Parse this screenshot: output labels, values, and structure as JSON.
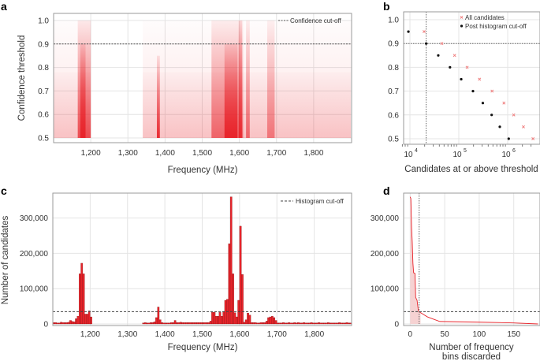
{
  "colors": {
    "red": "#e8242b",
    "pink": "#f08080",
    "black": "#111111",
    "grid": "#e4e4e4",
    "frame": "#9a9a9a",
    "fill": "#f6d2d2"
  },
  "chart_data": [
    {
      "panel": "a",
      "type": "scatter",
      "xlabel": "Frequency (MHz)",
      "ylabel": "Confidence threshold",
      "xlim": [
        1100,
        1900
      ],
      "ylim": [
        0.5,
        1.0
      ],
      "xticks": [
        "1,200",
        "1,300",
        "1,400",
        "1,500",
        "1,600",
        "1,700",
        "1,800"
      ],
      "xtick_values": [
        1200,
        1300,
        1400,
        1500,
        1600,
        1700,
        1800
      ],
      "yticks": [
        "0.5",
        "0.6",
        "0.7",
        "0.8",
        "0.9",
        "1.0"
      ],
      "ytick_values": [
        0.5,
        0.6,
        0.7,
        0.8,
        0.9,
        1.0
      ],
      "cutoff": 0.9,
      "legend": "Confidence cut-off",
      "density_bands": [
        {
          "from": 1100,
          "to": 1200,
          "max_threshold": 1.0,
          "intensity": 0.12
        },
        {
          "from": 1340,
          "to": 1900,
          "max_threshold": 1.0,
          "intensity": 0.12
        },
        {
          "from": 1100,
          "to": 1200,
          "max_threshold": 0.78,
          "intensity": 0.18
        },
        {
          "from": 1340,
          "to": 1900,
          "max_threshold": 0.78,
          "intensity": 0.18
        },
        {
          "from": 1165,
          "to": 1200,
          "max_threshold": 1.0,
          "intensity": 0.75
        },
        {
          "from": 1172,
          "to": 1186,
          "max_threshold": 0.9,
          "intensity": 1.0
        },
        {
          "from": 1378,
          "to": 1386,
          "max_threshold": 0.85,
          "intensity": 0.95
        },
        {
          "from": 1525,
          "to": 1610,
          "max_threshold": 1.0,
          "intensity": 0.6
        },
        {
          "from": 1560,
          "to": 1595,
          "max_threshold": 0.9,
          "intensity": 1.0
        },
        {
          "from": 1598,
          "to": 1607,
          "max_threshold": 1.0,
          "intensity": 0.9
        },
        {
          "from": 1618,
          "to": 1628,
          "max_threshold": 1.0,
          "intensity": 0.6
        },
        {
          "from": 1675,
          "to": 1695,
          "max_threshold": 1.0,
          "intensity": 0.5
        }
      ]
    },
    {
      "panel": "b",
      "type": "scatter",
      "xlabel": "Candidates at or above threshold",
      "xscale": "log",
      "xlim": [
        7000,
        3500000
      ],
      "ylim": [
        0.5,
        1.0
      ],
      "xticks": [
        {
          "base": "10",
          "exp": "4",
          "value": 10000
        },
        {
          "base": "10",
          "exp": "5",
          "value": 100000
        },
        {
          "base": "10",
          "exp": "6",
          "value": 1000000
        }
      ],
      "yticks": [
        "0.5",
        "0.6",
        "0.7",
        "0.8",
        "0.9",
        "1.0"
      ],
      "ytick_values": [
        0.5,
        0.6,
        0.7,
        0.8,
        0.9,
        1.0
      ],
      "cutoff_threshold": 0.9,
      "cutoff_candidates": 21500,
      "series": [
        {
          "name": "All candidates",
          "marker": "x",
          "color": "#f08080",
          "x": [
            19500,
            45000,
            82000,
            148000,
            265000,
            480000,
            840000,
            1330000,
            2100000,
            3300000
          ],
          "y": [
            0.95,
            0.9,
            0.85,
            0.8,
            0.75,
            0.7,
            0.65,
            0.6,
            0.55,
            0.5
          ]
        },
        {
          "name": "Post histogram cut-off",
          "marker": "dot",
          "color": "#111111",
          "x": [
            9300,
            21500,
            38000,
            66000,
            112000,
            195000,
            310000,
            470000,
            690000,
            1050000
          ],
          "y": [
            0.95,
            0.9,
            0.85,
            0.8,
            0.75,
            0.7,
            0.65,
            0.6,
            0.55,
            0.5
          ]
        }
      ]
    },
    {
      "panel": "c",
      "type": "bar",
      "xlabel": "Frequency (MHz)",
      "ylabel": "Number of candidates",
      "xlim": [
        1100,
        1900
      ],
      "ylim": [
        0,
        370000
      ],
      "xticks": [
        "1,200",
        "1,300",
        "1,400",
        "1,500",
        "1,600",
        "1,700",
        "1,800"
      ],
      "xtick_values": [
        1200,
        1300,
        1400,
        1500,
        1600,
        1700,
        1800
      ],
      "yticks": [
        "0",
        "100,000",
        "200,000",
        "300,000"
      ],
      "ytick_values": [
        0,
        100000,
        200000,
        300000
      ],
      "cutoff": 35000,
      "legend": "Histogram cut-off",
      "bin_start": 1100,
      "bin_width": 5,
      "values": [
        4000,
        4000,
        3000,
        3000,
        5000,
        4000,
        4000,
        4000,
        5000,
        10000,
        7000,
        6000,
        15000,
        22000,
        142000,
        172000,
        142000,
        28000,
        28000,
        37000,
        20000,
        0,
        0,
        0,
        0,
        0,
        0,
        0,
        0,
        0,
        0,
        0,
        0,
        0,
        0,
        0,
        0,
        0,
        0,
        0,
        0,
        0,
        0,
        0,
        0,
        0,
        0,
        0,
        3000,
        4000,
        3000,
        3000,
        4000,
        4000,
        6000,
        18000,
        48000,
        12000,
        4000,
        3000,
        3000,
        3000,
        3000,
        4000,
        4000,
        10000,
        4000,
        4000,
        5000,
        4000,
        4000,
        4000,
        4000,
        4000,
        4000,
        4000,
        4000,
        4000,
        4000,
        4000,
        4000,
        4000,
        4000,
        4000,
        8000,
        33000,
        33000,
        22000,
        22000,
        33000,
        22000,
        35000,
        67000,
        70000,
        227000,
        360000,
        142000,
        32000,
        20000,
        67000,
        277000,
        140000,
        5000,
        12000,
        31000,
        25000,
        4000,
        4000,
        4000,
        3000,
        3000,
        4000,
        4000,
        4000,
        8000,
        18000,
        20000,
        22000,
        18000,
        10000,
        3000,
        3000,
        3000,
        4000,
        3000,
        3000,
        4000,
        3000,
        3000,
        4000,
        3000,
        4000,
        3000,
        3000,
        4000,
        3000,
        3000,
        3000,
        4000,
        3000,
        3000,
        3000,
        4000,
        3000,
        3000,
        3000,
        3000,
        4000,
        3000,
        3000,
        3000,
        3000,
        3000,
        4000,
        3000,
        3000,
        3000,
        4000,
        3000,
        3000
      ]
    },
    {
      "panel": "d",
      "type": "area",
      "xlabel": [
        "Number of frequency",
        "bins discarded"
      ],
      "xlim": [
        -8,
        188
      ],
      "ylim": [
        0,
        370000
      ],
      "xticks": [
        "0",
        "50",
        "100",
        "150"
      ],
      "xtick_values": [
        0,
        50,
        100,
        150
      ],
      "yticks": [
        "0",
        "100,000",
        "200,000",
        "300,000"
      ],
      "ytick_values": [
        0,
        100000,
        200000,
        300000
      ],
      "cutoff_bins": 13,
      "cutoff_count": 35000,
      "x": [
        0,
        1,
        2,
        3,
        4,
        5,
        7,
        8,
        10,
        12,
        15,
        25,
        43,
        100,
        150,
        185
      ],
      "y": [
        360000,
        355000,
        275000,
        232000,
        172000,
        145000,
        143000,
        75000,
        67000,
        36000,
        32000,
        20000,
        7000,
        5000,
        3000,
        0
      ]
    }
  ],
  "panel_labels": [
    "a",
    "b",
    "c",
    "d"
  ]
}
